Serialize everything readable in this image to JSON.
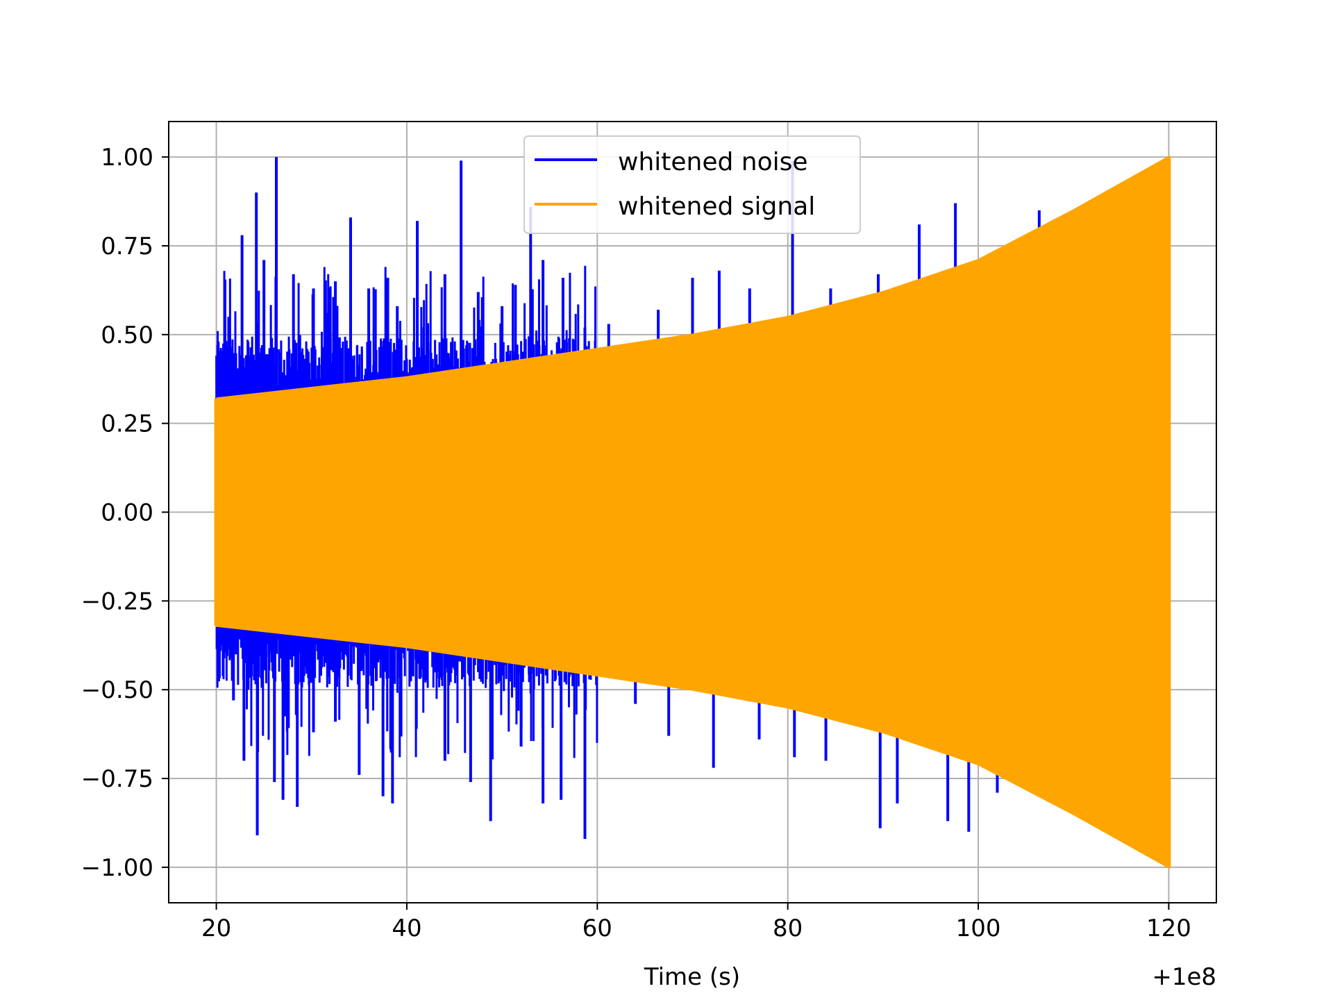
{
  "chart_data": {
    "type": "line",
    "title": "",
    "xlabel": "Time (s)",
    "ylabel": "",
    "x_offset_text": "+1e8",
    "xlim": [
      15,
      125
    ],
    "ylim": [
      -1.1,
      1.1
    ],
    "x_ticks": [
      20,
      40,
      60,
      80,
      100,
      120
    ],
    "x_tick_labels": [
      "20",
      "40",
      "60",
      "80",
      "100",
      "120"
    ],
    "y_ticks": [
      1.0,
      0.75,
      0.5,
      0.25,
      0.0,
      -0.25,
      -0.5,
      -0.75,
      -1.0
    ],
    "y_tick_labels": [
      "1.00",
      "0.75",
      "0.50",
      "0.25",
      "0.00",
      "−0.25",
      "−0.50",
      "−0.75",
      "−1.00"
    ],
    "grid": true,
    "legend_placement": "top-center",
    "series": [
      {
        "name": "whitened noise",
        "color": "#0000ff",
        "x_range": [
          20,
          60
        ],
        "typical_band": [
          -0.45,
          0.45
        ],
        "peaks": [
          {
            "x": 20.2,
            "y": 0.48
          },
          {
            "x": 21.3,
            "y": 0.55
          },
          {
            "x": 22.7,
            "y": 0.78
          },
          {
            "x": 24.2,
            "y": 0.9
          },
          {
            "x": 25.0,
            "y": 0.71
          },
          {
            "x": 26.3,
            "y": 1.0
          },
          {
            "x": 28.1,
            "y": 0.67
          },
          {
            "x": 30.2,
            "y": 0.63
          },
          {
            "x": 32.5,
            "y": 0.65
          },
          {
            "x": 34.1,
            "y": 0.83
          },
          {
            "x": 36.0,
            "y": 0.63
          },
          {
            "x": 38.0,
            "y": 0.66
          },
          {
            "x": 39.0,
            "y": 0.58
          },
          {
            "x": 41.1,
            "y": 0.82
          },
          {
            "x": 44.0,
            "y": 0.67
          },
          {
            "x": 45.7,
            "y": 0.99
          },
          {
            "x": 47.5,
            "y": 0.62
          },
          {
            "x": 50.0,
            "y": 0.58
          },
          {
            "x": 51.4,
            "y": 0.64
          },
          {
            "x": 53.0,
            "y": 0.86
          },
          {
            "x": 54.3,
            "y": 0.71
          },
          {
            "x": 56.4,
            "y": 0.66
          },
          {
            "x": 58.7,
            "y": 0.52
          }
        ],
        "troughs": [
          {
            "x": 20.2,
            "y": -0.44
          },
          {
            "x": 21.8,
            "y": -0.53
          },
          {
            "x": 22.9,
            "y": -0.7
          },
          {
            "x": 24.3,
            "y": -0.91
          },
          {
            "x": 26.1,
            "y": -0.76
          },
          {
            "x": 27.0,
            "y": -0.81
          },
          {
            "x": 28.5,
            "y": -0.83
          },
          {
            "x": 30.2,
            "y": -0.62
          },
          {
            "x": 32.5,
            "y": -0.59
          },
          {
            "x": 35.0,
            "y": -0.74
          },
          {
            "x": 37.5,
            "y": -0.8
          },
          {
            "x": 38.5,
            "y": -0.82
          },
          {
            "x": 41.0,
            "y": -0.61
          },
          {
            "x": 44.0,
            "y": -0.7
          },
          {
            "x": 46.7,
            "y": -0.76
          },
          {
            "x": 48.8,
            "y": -0.87
          },
          {
            "x": 52.0,
            "y": -0.66
          },
          {
            "x": 54.3,
            "y": -0.82
          },
          {
            "x": 56.2,
            "y": -0.81
          },
          {
            "x": 58.7,
            "y": -0.92
          }
        ]
      },
      {
        "name": "whitened signal",
        "color": "#ffa500",
        "x_range": [
          20,
          120
        ],
        "envelope": [
          {
            "x": 20,
            "upper": 0.32,
            "lower": -0.32
          },
          {
            "x": 30,
            "upper": 0.35,
            "lower": -0.35
          },
          {
            "x": 40,
            "upper": 0.38,
            "lower": -0.38
          },
          {
            "x": 50,
            "upper": 0.42,
            "lower": -0.42
          },
          {
            "x": 60,
            "upper": 0.46,
            "lower": -0.46
          },
          {
            "x": 70,
            "upper": 0.5,
            "lower": -0.5
          },
          {
            "x": 80,
            "upper": 0.55,
            "lower": -0.55
          },
          {
            "x": 90,
            "upper": 0.62,
            "lower": -0.62
          },
          {
            "x": 100,
            "upper": 0.71,
            "lower": -0.71
          },
          {
            "x": 110,
            "upper": 0.85,
            "lower": -0.85
          },
          {
            "x": 120,
            "upper": 1.0,
            "lower": -1.0
          }
        ]
      },
      {
        "name": "",
        "color": "#0000ff",
        "note_only_visible_outside_signal": true,
        "x_range": [
          60,
          108
        ],
        "peaks": [
          {
            "x": 61.2,
            "y": 0.53
          },
          {
            "x": 66.4,
            "y": 0.57
          },
          {
            "x": 70.0,
            "y": 0.66
          },
          {
            "x": 72.8,
            "y": 0.68
          },
          {
            "x": 76.0,
            "y": 0.63
          },
          {
            "x": 80.5,
            "y": 0.99
          },
          {
            "x": 84.5,
            "y": 0.63
          },
          {
            "x": 89.5,
            "y": 0.67
          },
          {
            "x": 93.8,
            "y": 0.81
          },
          {
            "x": 97.6,
            "y": 0.87
          },
          {
            "x": 106.4,
            "y": 0.85
          }
        ],
        "troughs": [
          {
            "x": 64.0,
            "y": -0.54
          },
          {
            "x": 67.5,
            "y": -0.63
          },
          {
            "x": 72.2,
            "y": -0.72
          },
          {
            "x": 77.0,
            "y": -0.64
          },
          {
            "x": 80.7,
            "y": -0.69
          },
          {
            "x": 84.0,
            "y": -0.7
          },
          {
            "x": 89.7,
            "y": -0.89
          },
          {
            "x": 91.5,
            "y": -0.82
          },
          {
            "x": 96.8,
            "y": -0.87
          },
          {
            "x": 99.0,
            "y": -0.9
          },
          {
            "x": 102.0,
            "y": -0.79
          }
        ]
      }
    ]
  }
}
